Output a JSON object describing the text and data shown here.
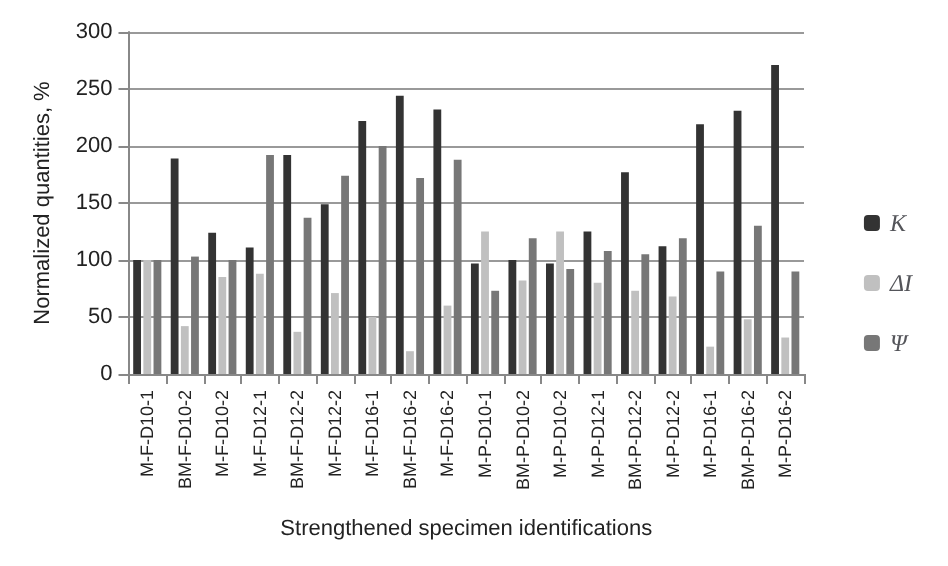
{
  "chart_data": {
    "type": "bar",
    "xlabel": "Strengthened specimen identifications",
    "ylabel": "Normalized quantities, %",
    "categories": [
      "M-F-D10-1",
      "BM-F-D10-2",
      "M-F-D10-2",
      "M-F-D12-1",
      "BM-F-D12-2",
      "M-F-D12-2",
      "M-F-D16-1",
      "BM-F-D16-2",
      "M-F-D16-2",
      "M-P-D10-1",
      "BM-P-D10-2",
      "M-P-D10-2",
      "M-P-D12-1",
      "BM-P-D12-2",
      "M-P-D12-2",
      "M-P-D16-1",
      "BM-P-D16-2",
      "M-P-D16-2"
    ],
    "series": [
      {
        "name": "K",
        "color": "#333333",
        "values": [
          100,
          189,
          124,
          111,
          192,
          149,
          222,
          244,
          232,
          97,
          100,
          97,
          125,
          177,
          112,
          219,
          231,
          271
        ]
      },
      {
        "name": "ΔI",
        "color": "#c0c0c0",
        "values": [
          100,
          42,
          85,
          88,
          37,
          71,
          50,
          20,
          60,
          125,
          82,
          125,
          80,
          73,
          68,
          24,
          48,
          32
        ]
      },
      {
        "name": "Ψ",
        "color": "#777777",
        "values": [
          100,
          103,
          100,
          192,
          137,
          174,
          200,
          172,
          188,
          73,
          119,
          92,
          108,
          105,
          119,
          90,
          130,
          90
        ]
      }
    ],
    "ylim": [
      0,
      300
    ],
    "yticks": [
      0,
      50,
      100,
      150,
      200,
      250,
      300
    ],
    "grid": "y",
    "legend": "right"
  }
}
